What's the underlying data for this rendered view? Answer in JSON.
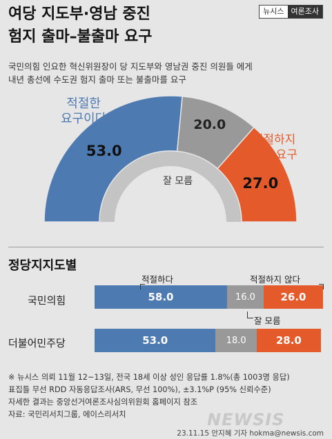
{
  "title_line1": "여당 지도부·영남 중진",
  "title_line2": "험지 출마–불출마 요구",
  "brand": {
    "part1": "뉴시스",
    "part2": "여론조사"
  },
  "intro_line1": "국민의힘 인요한 혁신위원장이 당 지도부와 영남권 중진 의원들 에게",
  "intro_line2": "내년 총선에 수도권 험지 출마 또는 불출마를 요구",
  "colors": {
    "appropriate": "#4e7ab2",
    "neutral": "#999999",
    "inappropriate": "#e45a2a",
    "arc_shadow": "#c4c4c4"
  },
  "chart_data": [
    {
      "type": "pie",
      "style": "semi-donut",
      "categories": [
        "적절한 요구이다",
        "잘 모름",
        "적절하지 못한 요구"
      ],
      "labels": {
        "appropriate_line1": "적절한",
        "appropriate_line2": "요구이다",
        "neutral": "잘 모름",
        "inappropriate_line1": "적절하지",
        "inappropriate_line2": "못한 요구"
      },
      "values": [
        53.0,
        20.0,
        27.0
      ],
      "value_labels": [
        "53.0",
        "20.0",
        "27.0"
      ]
    },
    {
      "type": "bar",
      "style": "stacked-horizontal-100",
      "title": "정당지지도별",
      "categories": [
        "국민의힘",
        "더불어민주당"
      ],
      "series": [
        {
          "name": "적절하다",
          "values": [
            58.0,
            53.0
          ],
          "value_labels": [
            "58.0",
            "53.0"
          ]
        },
        {
          "name": "잘 모름",
          "values": [
            16.0,
            18.0
          ],
          "value_labels": [
            "16.0",
            "18.0"
          ]
        },
        {
          "name": "적절하지 않다",
          "values": [
            26.0,
            28.0
          ],
          "value_labels": [
            "26.0",
            "28.0"
          ]
        }
      ]
    }
  ],
  "footer_line1": "※ 뉴시스 의뢰 11월 12~13일, 전국 18세 이상 성인 응답률 1.8%(총 1003명 응답)",
  "footer_line2": "표집틀 무선 RDD 자동응답조사(ARS, 무선 100%), ±3.1%P (95% 신뢰수준)",
  "footer_line3": "자세한 결과는 중앙선거여론조사심의위원회 홈페이지 참조",
  "footer_line4": "자료: 국민리서치그룹, 에이스리서치",
  "logo": "NEWSIS",
  "credit": "23.11.15 안지혜 기자 hokma@newsis.com"
}
